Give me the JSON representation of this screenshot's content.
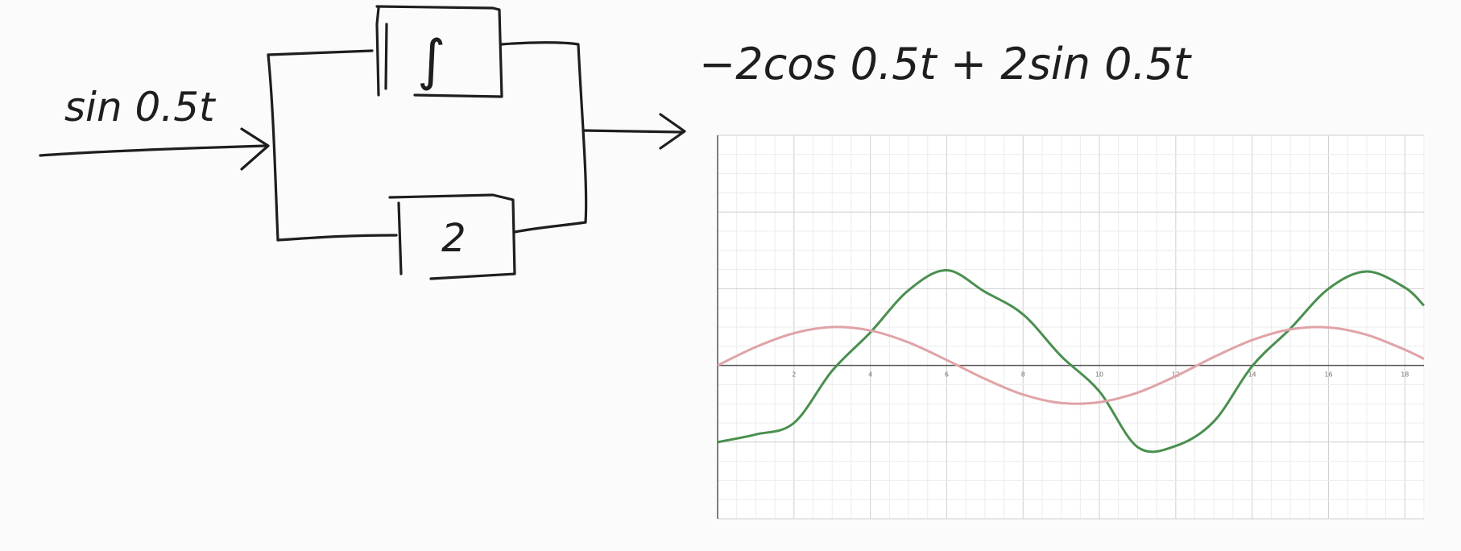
{
  "diagram": {
    "input_label": "sin 0.5t",
    "integrator_symbol": "∫",
    "gain_label": "2",
    "output_label": "−2cos 0.5t  + 2sin 0.5t"
  },
  "chart_data": {
    "type": "line",
    "x_ticks": [
      "2",
      "4",
      "6",
      "8",
      "10",
      "12",
      "14",
      "16",
      "18"
    ],
    "xlim": [
      0,
      18.5
    ],
    "ylim": [
      -4,
      6
    ],
    "grid": true,
    "series": [
      {
        "color": "#4a8f4f",
        "x": [
          0,
          1,
          2,
          3,
          4,
          5,
          6,
          7,
          8,
          9,
          10,
          11,
          12,
          13,
          14,
          15,
          16,
          17,
          18,
          18.5
        ],
        "y": [
          -2,
          -1.8,
          -1.5,
          -0.14,
          0.86,
          1.96,
          2.48,
          1.92,
          1.33,
          0.24,
          -0.68,
          -2.13,
          -2.1,
          -1.46,
          -0.02,
          0.96,
          2.0,
          2.45,
          2.03,
          1.56
        ]
      },
      {
        "color": "#e0a3a8",
        "x": [
          0,
          1,
          2,
          3,
          4,
          5,
          6,
          7,
          8,
          9,
          10,
          11,
          12,
          13,
          14,
          15,
          16,
          17,
          18,
          18.5
        ],
        "y": [
          0,
          0.48,
          0.84,
          1.0,
          0.91,
          0.6,
          0.14,
          -0.35,
          -0.76,
          -0.98,
          -0.96,
          -0.71,
          -0.28,
          0.22,
          0.66,
          0.94,
          0.99,
          0.8,
          0.41,
          0.17
        ]
      }
    ]
  }
}
